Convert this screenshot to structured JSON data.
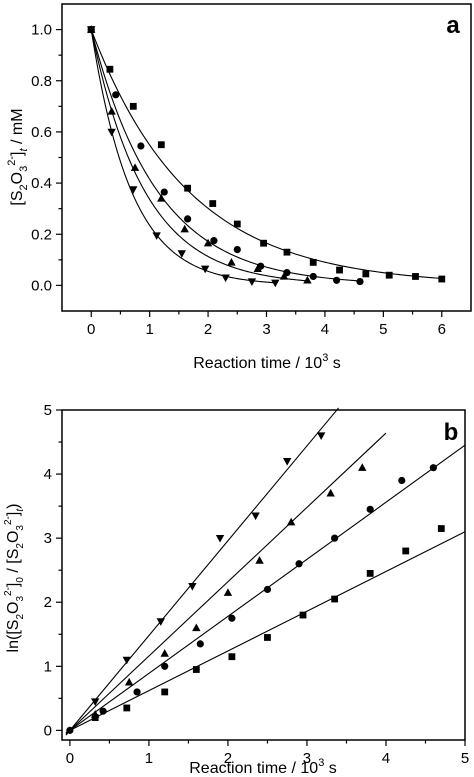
{
  "chart_data": [
    {
      "type": "scatter",
      "panel_label": "a",
      "ylabel": {
        "pre": "[S",
        "sub1": "2",
        "mid": "O",
        "sub2": "3",
        "sup": "2-",
        "close": "]",
        "subt": "t",
        "post": " / mM"
      },
      "xlabel": {
        "pre": "Reaction time / 10",
        "sup": "3",
        "post": " s"
      },
      "xlim": [
        -0.5,
        6.5
      ],
      "ylim": [
        -0.1,
        1.1
      ],
      "xticks": [
        "0",
        "1",
        "2",
        "3",
        "4",
        "5",
        "6"
      ],
      "xtick_values": [
        0,
        1,
        2,
        3,
        4,
        5,
        6
      ],
      "yticks": [
        "0.0",
        "0.2",
        "0.4",
        "0.6",
        "0.8",
        "1.0"
      ],
      "ytick_values": [
        0,
        0.2,
        0.4,
        0.6,
        0.8,
        1.0
      ],
      "series": [
        {
          "marker": "square",
          "fit_k": 0.6,
          "x": [
            0,
            0.32,
            0.72,
            1.2,
            1.65,
            2.08,
            2.5,
            2.95,
            3.35,
            3.8,
            4.25,
            4.7,
            5.1,
            5.55,
            6.0
          ],
          "y": [
            1.0,
            0.845,
            0.7,
            0.55,
            0.38,
            0.32,
            0.24,
            0.165,
            0.13,
            0.09,
            0.06,
            0.045,
            0.04,
            0.035,
            0.025
          ]
        },
        {
          "marker": "circle",
          "fit_k": 0.88,
          "x": [
            0,
            0.42,
            0.85,
            1.25,
            1.65,
            2.1,
            2.5,
            2.9,
            3.35,
            3.8,
            4.2,
            4.6
          ],
          "y": [
            1.0,
            0.745,
            0.545,
            0.365,
            0.26,
            0.175,
            0.14,
            0.075,
            0.05,
            0.035,
            0.02,
            0.015
          ]
        },
        {
          "marker": "triangle-up",
          "fit_k": 1.09,
          "x": [
            0,
            0.35,
            0.75,
            1.2,
            1.6,
            2.0,
            2.4,
            2.85,
            3.3,
            3.7
          ],
          "y": [
            1.0,
            0.68,
            0.46,
            0.34,
            0.22,
            0.165,
            0.09,
            0.065,
            0.035,
            0.02
          ]
        },
        {
          "marker": "triangle-down",
          "fit_k": 1.45,
          "x": [
            0,
            0.35,
            0.72,
            1.12,
            1.55,
            1.95,
            2.3,
            2.75,
            3.15
          ],
          "y": [
            1.0,
            0.6,
            0.375,
            0.195,
            0.125,
            0.065,
            0.03,
            0.015,
            0.01
          ]
        }
      ]
    },
    {
      "type": "scatter",
      "panel_label": "b",
      "ylabel": {
        "pre": "ln([S",
        "sub1": "2",
        "mid": "O",
        "sub2": "3",
        "sup": "2-",
        "close": "]",
        "sub0": "0",
        "mid2": " / [S",
        "sub3": "2",
        "mid3": "O",
        "sub4": "3",
        "sup2": "2-",
        "close2": "]",
        "subt": "t",
        "post": ")"
      },
      "xlabel": {
        "pre": "Reaction time / 10",
        "sup": "3",
        "post": " s"
      },
      "xlim": [
        -0.1,
        5.0
      ],
      "ylim": [
        -0.15,
        5.0
      ],
      "xticks": [
        "0",
        "1",
        "2",
        "3",
        "4",
        "5"
      ],
      "xtick_values": [
        0,
        1,
        2,
        3,
        4,
        5
      ],
      "yticks": [
        "0",
        "1",
        "2",
        "3",
        "4",
        "5"
      ],
      "ytick_values": [
        0,
        1,
        2,
        3,
        4,
        5
      ],
      "series": [
        {
          "marker": "square",
          "fit_k": 0.62,
          "fit_xmax": 5.0,
          "x": [
            0.32,
            0.72,
            1.2,
            1.6,
            2.05,
            2.5,
            2.95,
            3.35,
            3.8,
            4.25,
            4.7
          ],
          "y": [
            0.2,
            0.35,
            0.6,
            0.95,
            1.15,
            1.45,
            1.8,
            2.05,
            2.45,
            2.8,
            3.15
          ]
        },
        {
          "marker": "circle",
          "fit_k": 0.89,
          "fit_xmax": 5.0,
          "x": [
            0,
            0.42,
            0.85,
            1.2,
            1.65,
            2.05,
            2.5,
            2.9,
            3.35,
            3.8,
            4.2,
            4.6
          ],
          "y": [
            0,
            0.3,
            0.6,
            1.0,
            1.35,
            1.75,
            2.2,
            2.6,
            3.0,
            3.45,
            3.9,
            4.1
          ]
        },
        {
          "marker": "triangle-up",
          "fit_k": 1.16,
          "fit_xmax": 4.0,
          "x": [
            0.32,
            0.75,
            1.2,
            1.6,
            2.0,
            2.4,
            2.8,
            3.3,
            3.7
          ],
          "y": [
            0.25,
            0.75,
            1.2,
            1.6,
            2.15,
            2.65,
            3.25,
            3.7,
            4.1
          ]
        },
        {
          "marker": "triangle-down",
          "fit_k": 1.48,
          "fit_xmax": 3.4,
          "x": [
            0.32,
            0.72,
            1.15,
            1.55,
            1.9,
            2.35,
            2.75,
            3.18
          ],
          "y": [
            0.45,
            1.1,
            1.7,
            2.25,
            3.0,
            3.35,
            4.2,
            4.6
          ]
        }
      ]
    }
  ]
}
